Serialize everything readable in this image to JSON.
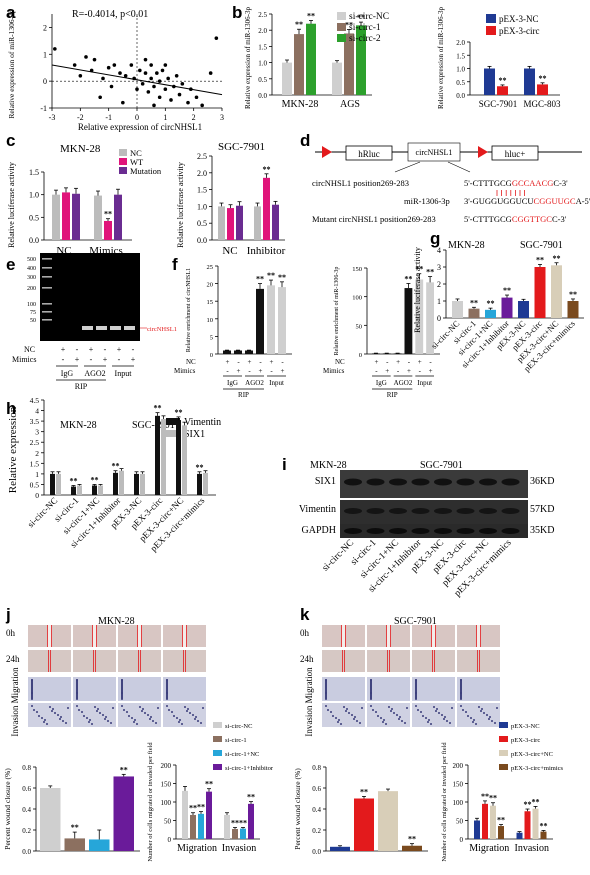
{
  "panels": {
    "a": {
      "label": "a",
      "annotation": "R=-0.4014, p<0.01",
      "ylabel": "Relative expression of miR-1306-3p",
      "xlabel": "Relative expression of circNHSL1",
      "xticks": [
        "-3",
        "-2",
        "-1",
        "0",
        "1",
        "2",
        "3"
      ],
      "yticks": [
        "-1",
        "0",
        "1",
        "2"
      ]
    },
    "b": {
      "label": "b",
      "legend_left": [
        "si-circ-NC",
        "si-circ-1",
        "si-circ-2"
      ],
      "legend_right": [
        "pEX-3-NC",
        "pEX-3-circ"
      ],
      "ylabel": "Relative expression of miR-1306-3p",
      "left_yticks": [
        "0.0",
        "0.5",
        "1.0",
        "1.5",
        "2.0",
        "2.5"
      ],
      "right_yticks": [
        "0.0",
        "0.5",
        "1.0",
        "1.5",
        "2.0"
      ],
      "left_groups": [
        "MKN-28",
        "AGS"
      ],
      "right_groups": [
        "SGC-7901",
        "MGC-803"
      ]
    },
    "c": {
      "label": "c",
      "title_left": "MKN-28",
      "title_right": "SGC-7901",
      "legend": [
        "NC",
        "WT",
        "Mutation"
      ],
      "ylabel": "Relative luciferase activity",
      "left_yticks": [
        "0.0",
        "0.5",
        "1.0",
        "1.5"
      ],
      "right_yticks": [
        "0.0",
        "0.5",
        "1.0",
        "1.5",
        "2.0",
        "2.5"
      ],
      "left_groups": [
        "NC",
        "Mimics"
      ],
      "right_groups": [
        "NC",
        "Inhibitor"
      ]
    },
    "d": {
      "label": "d",
      "box1": "hRluc",
      "box2": "circNHSL1",
      "box3": "hluc+",
      "row1_label": "circNHSL1 position269-283",
      "row1_seq_a": "5'-CTTTGCG",
      "row1_seq_b": "GCCAACG",
      "row1_seq_c": "C-3'",
      "row2_label": "miR-1306-3p",
      "row2_seq_a": "3'-GUGGUGGUCU",
      "row2_seq_b": "CGGUUGC",
      "row2_seq_c": "A-5'",
      "row3_label": "Mutant circNHSL1 position269-283",
      "row3_seq_a": "5'-CTTTGCG",
      "row3_seq_b": "CGGTTGC",
      "row3_seq_c": "C-3'"
    },
    "e": {
      "label": "e",
      "ladder": [
        "500",
        "400",
        "300",
        "200",
        "100",
        "75",
        "50"
      ],
      "band_label": "circNHSL1",
      "row1": "NC",
      "row2": "Mimics",
      "bottom1": "IgG",
      "bottom2": "AGO2",
      "bottom3": "Input",
      "rip": "RIP",
      "row1_signs": [
        "+",
        "-",
        "+",
        "-",
        "+",
        "-"
      ],
      "row2_signs": [
        "-",
        "+",
        "-",
        "+",
        "-",
        "+"
      ]
    },
    "f": {
      "label": "f",
      "ylabel_left": "Relative enrichment of circNHSL1",
      "ylabel_right": "Relative enrichment of miR-1306-3p",
      "left_yticks": [
        "0",
        "5",
        "10",
        "15",
        "20",
        "25"
      ],
      "right_yticks": [
        "0",
        "50",
        "100",
        "150"
      ],
      "row1": "NC",
      "row2": "Mimics",
      "bottom1": "IgG",
      "bottom2": "AGO2",
      "bottom3": "Input",
      "rip": "RIP",
      "row1_signs": [
        "+",
        "-",
        "+",
        "-",
        "+",
        "-"
      ],
      "row2_signs": [
        "-",
        "+",
        "-",
        "+",
        "-",
        "+"
      ]
    },
    "g": {
      "label": "g",
      "title_left": "MKN-28",
      "title_right": "SGC-7901",
      "ylabel": "Relative luciferase activity",
      "yticks": [
        "0",
        "1",
        "2",
        "3",
        "4"
      ],
      "xcats": [
        "si-circ-NC",
        "si-circ-1",
        "si-circ-1+NC",
        "si-circ-1+Inhibitor",
        "pEX-3-NC",
        "pEX-3-circ",
        "pEX-3-circ+NC",
        "pEX-3-circ+mimics"
      ]
    },
    "h": {
      "label": "h",
      "title_left": "MKN-28",
      "title_right": "SGC-7901",
      "legend": [
        "Vimentin",
        "SIX1"
      ],
      "ylabel": "Relative expression",
      "yticks": [
        "0",
        "0.5",
        "1",
        "1.5",
        "2",
        "2.5",
        "3",
        "3.5",
        "4",
        "4.5"
      ],
      "xcats": [
        "si-circ-NC",
        "si-circ-1",
        "si-circ-1+NC",
        "si-circ-1+Inhibitor",
        "pEX-3-NC",
        "pEX-3-circ",
        "pEX-3-circ+NC",
        "pEX-3-circ+mimics"
      ]
    },
    "i": {
      "label": "i",
      "title_left": "MKN-28",
      "title_right": "SGC-7901",
      "rows": [
        "SIX1",
        "Vimentin",
        "GAPDH"
      ],
      "sizes": [
        "36KD",
        "57KD",
        "35KD"
      ],
      "xcats": [
        "si-circ-NC",
        "si-circ-1",
        "si-circ-1+NC",
        "si-circ-1+Inhibitor",
        "pEX-3-NC",
        "pEX-3-circ",
        "pEX-3-circ+NC",
        "pEX-3-circ+mimics"
      ]
    },
    "j": {
      "label": "j",
      "title": "MKN-28",
      "row0": "0h",
      "row24": "24h",
      "side": "Invasion Migration",
      "legend": [
        "si-circ-NC",
        "si-circ-1",
        "si-circ-1+NC",
        "si-circ-1+Inhibitor"
      ],
      "ylabel1": "Percent wound closure (%)",
      "yticks1": [
        "0.0",
        "0.2",
        "0.4",
        "0.6",
        "0.8"
      ],
      "ylabel2": "Number of cells migrated or invaded per field",
      "yticks2": [
        "0",
        "50",
        "100",
        "150",
        "200"
      ],
      "groups2": [
        "Migration",
        "Invasion"
      ]
    },
    "k": {
      "label": "k",
      "title": "SGC-7901",
      "row0": "0h",
      "row24": "24h",
      "side": "Invasion Migration",
      "legend": [
        "pEX-3-NC",
        "pEX-3-circ",
        "pEX-3-circ+NC",
        "pEX-3-circ+mimics"
      ],
      "ylabel1": "Percent wound closure (%)",
      "yticks1": [
        "0.0",
        "0.2",
        "0.4",
        "0.6",
        "0.8"
      ],
      "ylabel2": "Number of cells migrated or invaded per field",
      "yticks2": [
        "0",
        "50",
        "100",
        "150",
        "200"
      ],
      "groups2": [
        "Migration",
        "Invasion"
      ]
    }
  },
  "colors": {
    "black": "#111111",
    "grey": "#bcbcbc",
    "red": "#e31a1c",
    "blue": "#1f3a93",
    "brown": "#8c7060",
    "green": "#2ca02c",
    "magenta": "#e0147a",
    "purple": "#6a2c91",
    "cyan": "#26a6d9",
    "beige": "#d8ceb8",
    "darkbrown": "#7a4a1e",
    "lightgrey": "#cfcfcf",
    "violet": "#6a1b9a"
  },
  "sig": "**",
  "chart_data": [
    {
      "panel": "a",
      "type": "scatter",
      "ylim": [
        -1,
        2.5
      ],
      "xlim": [
        -3,
        3
      ],
      "points": [
        [
          -2.9,
          1.2
        ],
        [
          -2.2,
          0.6
        ],
        [
          -2.0,
          0.2
        ],
        [
          -1.8,
          0.9
        ],
        [
          -1.6,
          0.4
        ],
        [
          -1.5,
          0.8
        ],
        [
          -1.3,
          -0.6
        ],
        [
          -1.2,
          0.1
        ],
        [
          -1.0,
          0.5
        ],
        [
          -0.8,
          0.6
        ],
        [
          -0.6,
          0.3
        ],
        [
          -0.5,
          -0.8
        ],
        [
          -0.4,
          0.2
        ],
        [
          -0.2,
          0.6
        ],
        [
          -0.1,
          0.1
        ],
        [
          0.0,
          -0.3
        ],
        [
          0.1,
          0.4
        ],
        [
          0.2,
          -0.1
        ],
        [
          0.3,
          0.3
        ],
        [
          0.4,
          -0.4
        ],
        [
          0.5,
          0.6
        ],
        [
          0.5,
          0.1
        ],
        [
          0.6,
          -0.2
        ],
        [
          0.7,
          0.3
        ],
        [
          0.8,
          -0.6
        ],
        [
          0.8,
          0.0
        ],
        [
          0.9,
          0.4
        ],
        [
          1.0,
          -0.3
        ],
        [
          1.1,
          0.1
        ],
        [
          1.2,
          -0.7
        ],
        [
          1.3,
          -0.2
        ],
        [
          1.4,
          0.2
        ],
        [
          1.5,
          -0.5
        ],
        [
          1.6,
          -0.1
        ],
        [
          1.8,
          -0.8
        ],
        [
          1.9,
          -0.3
        ],
        [
          2.1,
          -0.6
        ],
        [
          2.3,
          -0.9
        ],
        [
          2.6,
          0.3
        ],
        [
          2.8,
          1.6
        ],
        [
          0.3,
          0.8
        ],
        [
          -0.9,
          -0.2
        ],
        [
          1.0,
          0.6
        ],
        [
          0.6,
          -0.9
        ]
      ],
      "fit": [
        [
          -3,
          0.6
        ],
        [
          3,
          -0.5
        ]
      ]
    },
    {
      "panel": "b-left",
      "type": "bar",
      "categories": [
        "MKN-28",
        "AGS"
      ],
      "series": [
        {
          "name": "si-circ-NC",
          "values": [
            1.0,
            1.0
          ]
        },
        {
          "name": "si-circ-1",
          "values": [
            1.88,
            1.9
          ]
        },
        {
          "name": "si-circ-2",
          "values": [
            2.2,
            2.15
          ]
        }
      ],
      "errors": [
        [
          0.08,
          0.06
        ],
        [
          0.15,
          0.12
        ],
        [
          0.1,
          0.1
        ]
      ],
      "ylim": [
        0,
        2.5
      ]
    },
    {
      "panel": "b-right",
      "type": "bar",
      "categories": [
        "SGC-7901",
        "MGC-803"
      ],
      "series": [
        {
          "name": "pEX-3-NC",
          "values": [
            1.0,
            1.0
          ]
        },
        {
          "name": "pEX-3-circ",
          "values": [
            0.33,
            0.4
          ]
        }
      ],
      "errors": [
        [
          0.08,
          0.08
        ],
        [
          0.05,
          0.06
        ]
      ],
      "ylim": [
        0,
        2.0
      ]
    },
    {
      "panel": "c-left",
      "type": "bar",
      "categories": [
        "NC",
        "Mimics"
      ],
      "series": [
        {
          "name": "NC",
          "values": [
            1.0,
            0.98
          ]
        },
        {
          "name": "WT",
          "values": [
            1.05,
            0.42
          ]
        },
        {
          "name": "Mutation",
          "values": [
            1.02,
            1.0
          ]
        }
      ],
      "errors": [
        [
          0.1,
          0.1
        ],
        [
          0.1,
          0.05
        ],
        [
          0.12,
          0.12
        ]
      ],
      "ylim": [
        0,
        1.5
      ]
    },
    {
      "panel": "c-right",
      "type": "bar",
      "categories": [
        "NC",
        "Inhibitor"
      ],
      "series": [
        {
          "name": "NC",
          "values": [
            1.0,
            1.0
          ]
        },
        {
          "name": "WT",
          "values": [
            0.95,
            1.85
          ]
        },
        {
          "name": "Mutation",
          "values": [
            1.02,
            1.05
          ]
        }
      ],
      "errors": [
        [
          0.1,
          0.1
        ],
        [
          0.1,
          0.12
        ],
        [
          0.12,
          0.1
        ]
      ],
      "ylim": [
        0,
        2.5
      ]
    },
    {
      "panel": "f-left",
      "type": "bar",
      "categories": [
        "c1",
        "c2",
        "c3",
        "c4",
        "c5",
        "c6"
      ],
      "values": [
        1.0,
        1.0,
        1.0,
        18.5,
        19.5,
        19.0
      ],
      "errors": [
        0.1,
        0.1,
        0.1,
        1.5,
        1.5,
        1.5
      ],
      "ylim": [
        0,
        25
      ]
    },
    {
      "panel": "f-right",
      "type": "bar",
      "categories": [
        "c1",
        "c2",
        "c3",
        "c4",
        "c5",
        "c6"
      ],
      "values": [
        1.0,
        1.0,
        1.0,
        115,
        130,
        125
      ],
      "errors": [
        0.5,
        0.5,
        0.5,
        8,
        10,
        10
      ],
      "ylim": [
        0,
        150
      ]
    },
    {
      "panel": "g",
      "type": "bar",
      "categories": [
        "si-circ-NC",
        "si-circ-1",
        "si-circ-1+NC",
        "si-circ-1+Inhibitor",
        "pEX-3-NC",
        "pEX-3-circ",
        "pEX-3-circ+NC",
        "pEX-3-circ+mimics"
      ],
      "values": [
        1.0,
        0.55,
        0.48,
        1.2,
        1.0,
        3.0,
        3.1,
        1.0
      ],
      "errors": [
        0.12,
        0.08,
        0.1,
        0.15,
        0.1,
        0.15,
        0.15,
        0.12
      ],
      "ylim": [
        0,
        4
      ]
    },
    {
      "panel": "h",
      "type": "bar",
      "categories": [
        "si-circ-NC",
        "si-circ-1",
        "si-circ-1+NC",
        "si-circ-1+Inhibitor",
        "pEX-3-NC",
        "pEX-3-circ",
        "pEX-3-circ+NC",
        "pEX-3-circ+mimics"
      ],
      "series": [
        {
          "name": "Vimentin",
          "values": [
            1.0,
            0.4,
            0.45,
            1.05,
            1.0,
            3.75,
            3.55,
            1.0
          ]
        },
        {
          "name": "SIX1",
          "values": [
            1.0,
            0.45,
            0.45,
            1.15,
            1.0,
            3.6,
            3.3,
            1.05
          ]
        }
      ],
      "errors": [
        [
          0.1,
          0.05,
          0.05,
          0.1,
          0.1,
          0.15,
          0.15,
          0.1
        ],
        [
          0.1,
          0.05,
          0.05,
          0.1,
          0.1,
          0.15,
          0.15,
          0.1
        ]
      ],
      "ylim": [
        0,
        4.5
      ]
    },
    {
      "panel": "j-wound",
      "type": "bar",
      "categories": [
        "si-circ-NC",
        "si-circ-1",
        "si-circ-1+NC",
        "si-circ-1+Inhibitor"
      ],
      "values": [
        0.6,
        0.12,
        0.11,
        0.71
      ],
      "errors": [
        0.02,
        0.06,
        0.09,
        0.02
      ],
      "ylim": [
        0,
        0.8
      ]
    },
    {
      "panel": "j-cells",
      "type": "bar",
      "categories": [
        "Migration",
        "Invasion"
      ],
      "series": [
        {
          "name": "si-circ-NC",
          "values": [
            130,
            65
          ]
        },
        {
          "name": "si-circ-1",
          "values": [
            65,
            27
          ]
        },
        {
          "name": "si-circ-1+NC",
          "values": [
            68,
            28
          ]
        },
        {
          "name": "si-circ-1+Inhibitor",
          "values": [
            128,
            95
          ]
        }
      ],
      "errors": [
        [
          12,
          6
        ],
        [
          6,
          4
        ],
        [
          6,
          3
        ],
        [
          8,
          6
        ]
      ],
      "ylim": [
        0,
        200
      ]
    },
    {
      "panel": "k-wound",
      "type": "bar",
      "categories": [
        "pEX-3-NC",
        "pEX-3-circ",
        "pEX-3-circ+NC",
        "pEX-3-circ+mimics"
      ],
      "values": [
        0.04,
        0.5,
        0.57,
        0.05
      ],
      "errors": [
        0.01,
        0.02,
        0.02,
        0.02
      ],
      "ylim": [
        0,
        0.8
      ]
    },
    {
      "panel": "k-cells",
      "type": "bar",
      "categories": [
        "Migration",
        "Invasion"
      ],
      "series": [
        {
          "name": "pEX-3-NC",
          "values": [
            50,
            17
          ]
        },
        {
          "name": "pEX-3-circ",
          "values": [
            95,
            75
          ]
        },
        {
          "name": "pEX-3-circ+NC",
          "values": [
            90,
            82
          ]
        },
        {
          "name": "pEX-3-circ+mimics",
          "values": [
            35,
            20
          ]
        }
      ],
      "errors": [
        [
          6,
          3
        ],
        [
          8,
          6
        ],
        [
          8,
          6
        ],
        [
          4,
          3
        ]
      ],
      "ylim": [
        0,
        200
      ]
    }
  ]
}
